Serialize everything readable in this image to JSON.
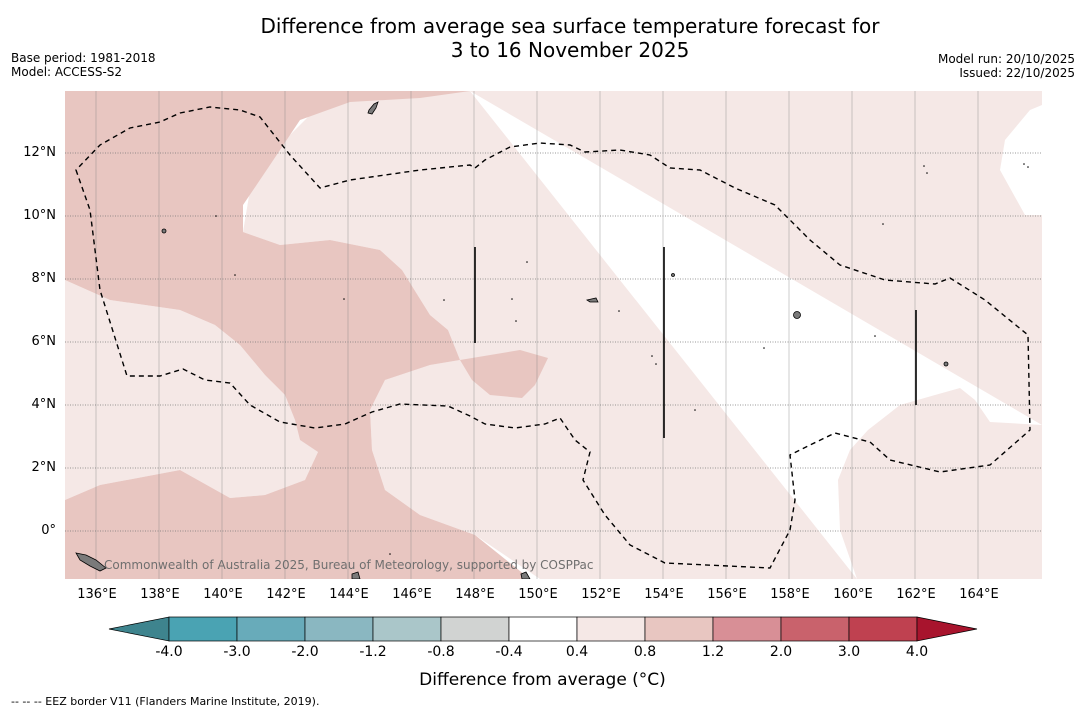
{
  "header": {
    "title_line1": "Difference from average sea surface temperature forecast for",
    "title_line2": "3 to 16 November 2025",
    "base_period": "Base period: 1981-2018",
    "model": "Model: ACCESS-S2",
    "model_run": "Model run: 20/10/2025",
    "issued": "Issued: 22/10/2025"
  },
  "map": {
    "lon_labels": [
      "136°E",
      "138°E",
      "140°E",
      "142°E",
      "144°E",
      "146°E",
      "148°E",
      "150°E",
      "152°E",
      "154°E",
      "156°E",
      "158°E",
      "160°E",
      "162°E",
      "164°E"
    ],
    "lat_labels": [
      "12°N",
      "10°N",
      "8°N",
      "6°N",
      "4°N",
      "2°N",
      "0°"
    ],
    "credit": "Commonwealth of Australia 2025, Bureau of Meteorology, supported by COSPPac",
    "colors": {
      "band_0_4_0_8": "#f5e8e6",
      "band_0_8_1_2": "#e8c6c1",
      "land": "#7a7a7a",
      "gridline": "#888888"
    }
  },
  "colorbar": {
    "labels": [
      "-4.0",
      "-3.0",
      "-2.0",
      "-1.2",
      "-0.8",
      "-0.4",
      "0.4",
      "0.8",
      "1.2",
      "2.0",
      "3.0",
      "4.0"
    ],
    "colors": [
      "#3e848e",
      "#4aa3b3",
      "#68abba",
      "#8ab7c1",
      "#aac6c9",
      "#d1d3d2",
      "#ffffff",
      "#f5e8e6",
      "#e8c6c1",
      "#d88f96",
      "#c9626c",
      "#bf4150",
      "#a8142d"
    ],
    "title": "Difference from average (°C)"
  },
  "footnote": "--  --  -- EEZ border V11 (Flanders Marine Institute, 2019)."
}
